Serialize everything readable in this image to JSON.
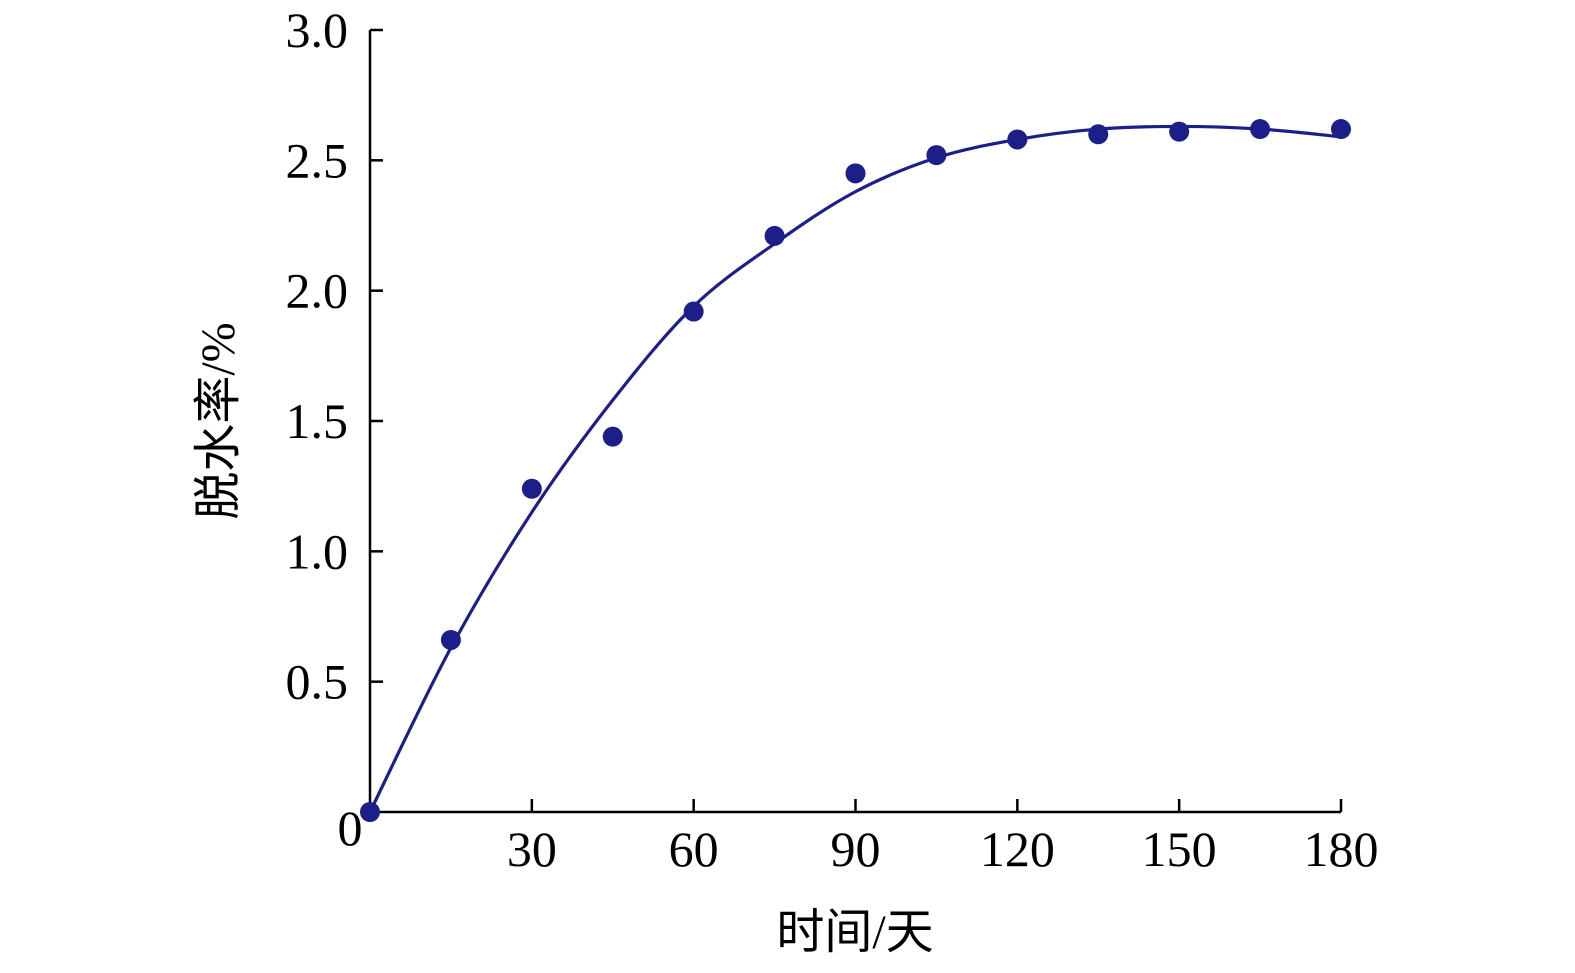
{
  "chart_data": {
    "type": "scatter",
    "title": "",
    "xlabel": "时间/天",
    "ylabel": "脱水率/%",
    "xlim": [
      0,
      180
    ],
    "ylim": [
      0,
      3.0
    ],
    "x_ticks": [
      30,
      60,
      90,
      120,
      150,
      180
    ],
    "y_ticks": [
      0.5,
      1.0,
      1.5,
      2.0,
      2.5,
      3.0
    ],
    "x_tick_labels": [
      "30",
      "60",
      "90",
      "120",
      "150",
      "180"
    ],
    "y_tick_labels": [
      "0.5",
      "1.0",
      "1.5",
      "2.0",
      "2.5",
      "3.0"
    ],
    "origin_label": "0",
    "grid": false,
    "legend": "none",
    "series": [
      {
        "kind": "points",
        "color": "#1c1f8a",
        "x": [
          0,
          15,
          30,
          45,
          60,
          75,
          90,
          105,
          120,
          135,
          150,
          165,
          180
        ],
        "y": [
          0,
          0.66,
          1.24,
          1.44,
          1.92,
          2.21,
          2.45,
          2.52,
          2.58,
          2.6,
          2.61,
          2.62,
          2.62
        ]
      },
      {
        "kind": "fit-line",
        "color": "#1c1f8a",
        "x": [
          0,
          15,
          30,
          45,
          60,
          75,
          90,
          105,
          120,
          135,
          150,
          165,
          180
        ],
        "y": [
          0,
          0.63,
          1.15,
          1.58,
          1.94,
          2.18,
          2.38,
          2.51,
          2.58,
          2.62,
          2.63,
          2.62,
          2.59
        ]
      }
    ]
  }
}
